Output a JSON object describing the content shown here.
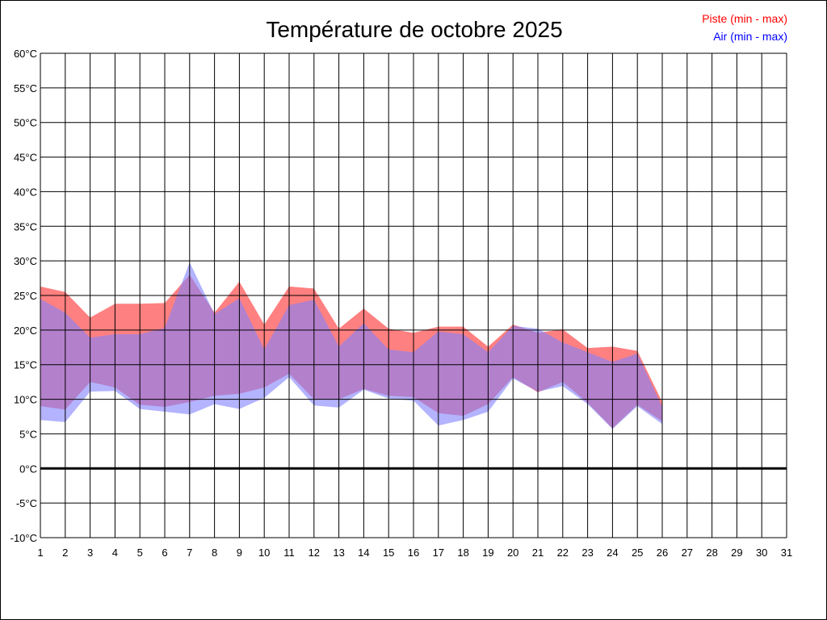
{
  "chart_data": {
    "type": "area",
    "title": "Température de octobre 2025",
    "x": [
      1,
      2,
      3,
      4,
      5,
      6,
      7,
      8,
      9,
      10,
      11,
      12,
      13,
      14,
      15,
      16,
      17,
      18,
      19,
      20,
      21,
      22,
      23,
      24,
      25,
      26
    ],
    "x_ticks": [
      "1",
      "2",
      "3",
      "4",
      "5",
      "6",
      "7",
      "8",
      "9",
      "10",
      "11",
      "12",
      "13",
      "14",
      "15",
      "16",
      "17",
      "18",
      "19",
      "20",
      "21",
      "22",
      "23",
      "24",
      "25",
      "26",
      "27",
      "28",
      "29",
      "30",
      "31"
    ],
    "y_ticks": [
      "60°C",
      "55°C",
      "50°C",
      "45°C",
      "40°C",
      "35°C",
      "30°C",
      "25°C",
      "20°C",
      "15°C",
      "10°C",
      "5°C",
      "0°C",
      "-5°C",
      "-10°C"
    ],
    "xlim": [
      1,
      31
    ],
    "ylim": [
      -10,
      60
    ],
    "grid": true,
    "legend_position": "top-right",
    "series": [
      {
        "name": "Piste (min - max)",
        "color": "#ff8080",
        "min": [
          9.0,
          8.5,
          12.5,
          11.7,
          9.2,
          8.9,
          9.6,
          10.5,
          10.8,
          11.7,
          13.7,
          10.0,
          10.0,
          11.5,
          10.5,
          10.3,
          8.0,
          7.6,
          9.3,
          13.2,
          11.0,
          12.5,
          9.5,
          5.8,
          9.2,
          6.8
        ],
        "max": [
          26.3,
          25.5,
          21.8,
          23.8,
          23.8,
          23.9,
          28.0,
          22.5,
          27.0,
          20.8,
          26.3,
          26.0,
          20.2,
          23.1,
          20.2,
          19.6,
          20.5,
          20.5,
          17.6,
          20.8,
          19.6,
          20.1,
          17.4,
          17.6,
          17.0,
          9.6
        ]
      },
      {
        "name": "Air (min - max)",
        "color": "#8080ff",
        "min": [
          7.0,
          6.7,
          11.1,
          11.2,
          8.6,
          8.2,
          7.8,
          9.3,
          8.6,
          10.2,
          13.2,
          9.1,
          8.8,
          11.4,
          10.1,
          9.8,
          6.2,
          7.0,
          8.2,
          13.0,
          11.1,
          11.9,
          9.3,
          5.7,
          9.0,
          6.4
        ],
        "max": [
          24.5,
          22.5,
          18.9,
          19.4,
          19.4,
          20.3,
          29.8,
          22.3,
          24.6,
          17.2,
          23.6,
          24.4,
          17.6,
          21.0,
          17.2,
          16.8,
          19.8,
          19.4,
          16.8,
          20.6,
          20.2,
          18.2,
          16.8,
          15.4,
          16.6,
          8.9
        ]
      }
    ]
  }
}
